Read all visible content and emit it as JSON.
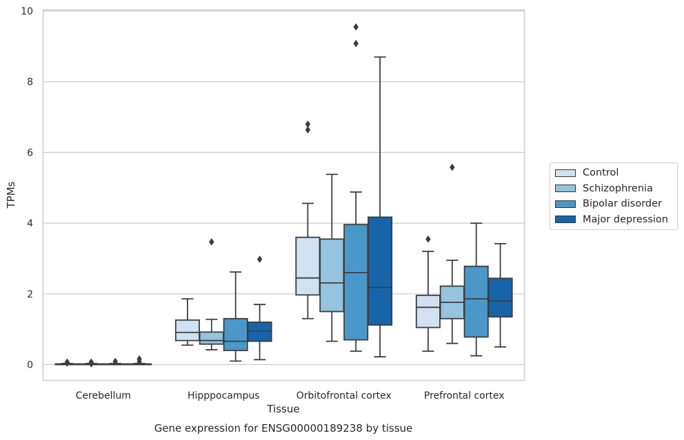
{
  "chart_data": {
    "type": "boxplot",
    "title": "",
    "caption": "Gene expression for ENSG00000189238 by tissue",
    "xlabel": "Tissue",
    "ylabel": "TPMs",
    "ylim": [
      -0.45,
      10
    ],
    "yticks": [
      0,
      2,
      4,
      6,
      8,
      10
    ],
    "ytick_labels": [
      "0",
      "2",
      "4",
      "6",
      "8",
      "10"
    ],
    "grid": "horizontal",
    "legend_position": "right",
    "categories": [
      "Cerebellum",
      "Hipppocampus",
      "Orbitofrontal cortex",
      "Prefrontal cortex"
    ],
    "series": [
      {
        "name": "Control",
        "color": "#d0e1f2",
        "boxes": [
          {
            "whislo": 0.0,
            "q1": 0.0,
            "med": 0.01,
            "q3": 0.02,
            "whishi": 0.03,
            "fliers": [
              0.07,
              0.04
            ]
          },
          {
            "whislo": 0.55,
            "q1": 0.68,
            "med": 0.91,
            "q3": 1.26,
            "whishi": 1.86,
            "fliers": []
          },
          {
            "whislo": 1.3,
            "q1": 1.97,
            "med": 2.45,
            "q3": 3.6,
            "whishi": 4.56,
            "fliers": [
              6.8,
              6.64
            ]
          },
          {
            "whislo": 0.38,
            "q1": 1.05,
            "med": 1.62,
            "q3": 1.96,
            "whishi": 3.2,
            "fliers": [
              3.55
            ]
          }
        ]
      },
      {
        "name": "Schizophrenia",
        "color": "#94c4df",
        "boxes": [
          {
            "whislo": 0.0,
            "q1": 0.0,
            "med": 0.01,
            "q3": 0.02,
            "whishi": 0.03,
            "fliers": [
              0.07,
              0.02
            ]
          },
          {
            "whislo": 0.42,
            "q1": 0.58,
            "med": 0.68,
            "q3": 0.92,
            "whishi": 1.28,
            "fliers": [
              3.47
            ]
          },
          {
            "whislo": 0.66,
            "q1": 1.5,
            "med": 2.31,
            "q3": 3.55,
            "whishi": 5.38,
            "fliers": []
          },
          {
            "whislo": 0.6,
            "q1": 1.3,
            "med": 1.76,
            "q3": 2.22,
            "whishi": 2.95,
            "fliers": [
              5.58
            ]
          }
        ]
      },
      {
        "name": "Bipolar disorder",
        "color": "#4a98c9",
        "boxes": [
          {
            "whislo": 0.0,
            "q1": 0.0,
            "med": 0.01,
            "q3": 0.02,
            "whishi": 0.03,
            "fliers": [
              0.09
            ]
          },
          {
            "whislo": 0.1,
            "q1": 0.4,
            "med": 0.66,
            "q3": 1.3,
            "whishi": 2.62,
            "fliers": []
          },
          {
            "whislo": 0.38,
            "q1": 0.7,
            "med": 2.6,
            "q3": 3.96,
            "whishi": 4.88,
            "fliers": [
              9.55,
              9.08
            ]
          },
          {
            "whislo": 0.25,
            "q1": 0.78,
            "med": 1.86,
            "q3": 2.78,
            "whishi": 4.0,
            "fliers": []
          }
        ]
      },
      {
        "name": "Major depression",
        "color": "#1764ab",
        "boxes": [
          {
            "whislo": 0.0,
            "q1": 0.0,
            "med": 0.01,
            "q3": 0.02,
            "whishi": 0.03,
            "fliers": [
              0.16,
              0.08
            ]
          },
          {
            "whislo": 0.14,
            "q1": 0.66,
            "med": 0.95,
            "q3": 1.2,
            "whishi": 1.7,
            "fliers": [
              2.98
            ]
          },
          {
            "whislo": 0.22,
            "q1": 1.12,
            "med": 2.18,
            "q3": 4.17,
            "whishi": 8.7,
            "fliers": []
          },
          {
            "whislo": 0.5,
            "q1": 1.35,
            "med": 1.8,
            "q3": 2.44,
            "whishi": 3.42,
            "fliers": []
          }
        ]
      }
    ]
  }
}
